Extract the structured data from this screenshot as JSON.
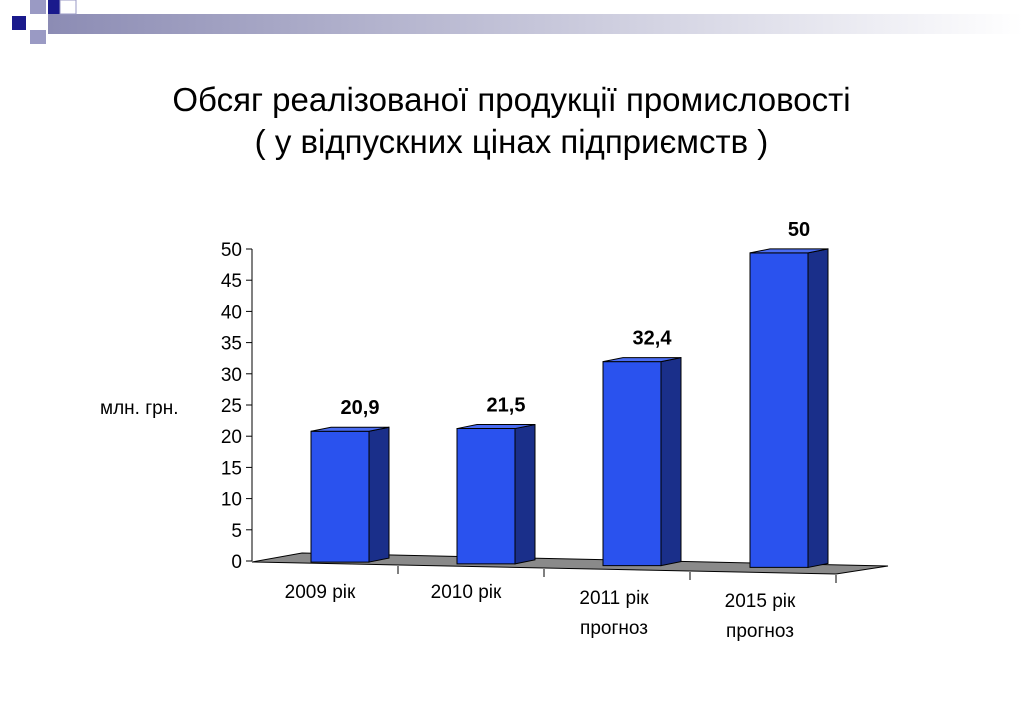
{
  "slide": {
    "title_line1": "Обсяг реалізованої продукції промисловості",
    "title_line2": "( у відпускних цінах підприємств )",
    "accent_color": "#1a1a8c",
    "deco_bar_color": "#a8a8c8"
  },
  "chart_data": {
    "type": "bar",
    "ylabel": "млн. грн.",
    "ylim": [
      0,
      50
    ],
    "yticks": [
      0,
      5,
      10,
      15,
      20,
      25,
      30,
      35,
      40,
      45,
      50
    ],
    "categories": [
      [
        "2009 рік"
      ],
      [
        "2010 рік"
      ],
      [
        "2011 рік",
        "прогноз"
      ],
      [
        "2015 рік",
        "прогноз"
      ]
    ],
    "values": [
      20.9,
      21.5,
      32.4,
      50
    ],
    "data_labels": [
      "20,9",
      "21,5",
      "32,4",
      "50"
    ],
    "bar_color": "#2a52ee",
    "bar_side_color": "#1a2f8a",
    "bar_top_color": "#4a6cf2",
    "legend": "none",
    "grid": false
  }
}
